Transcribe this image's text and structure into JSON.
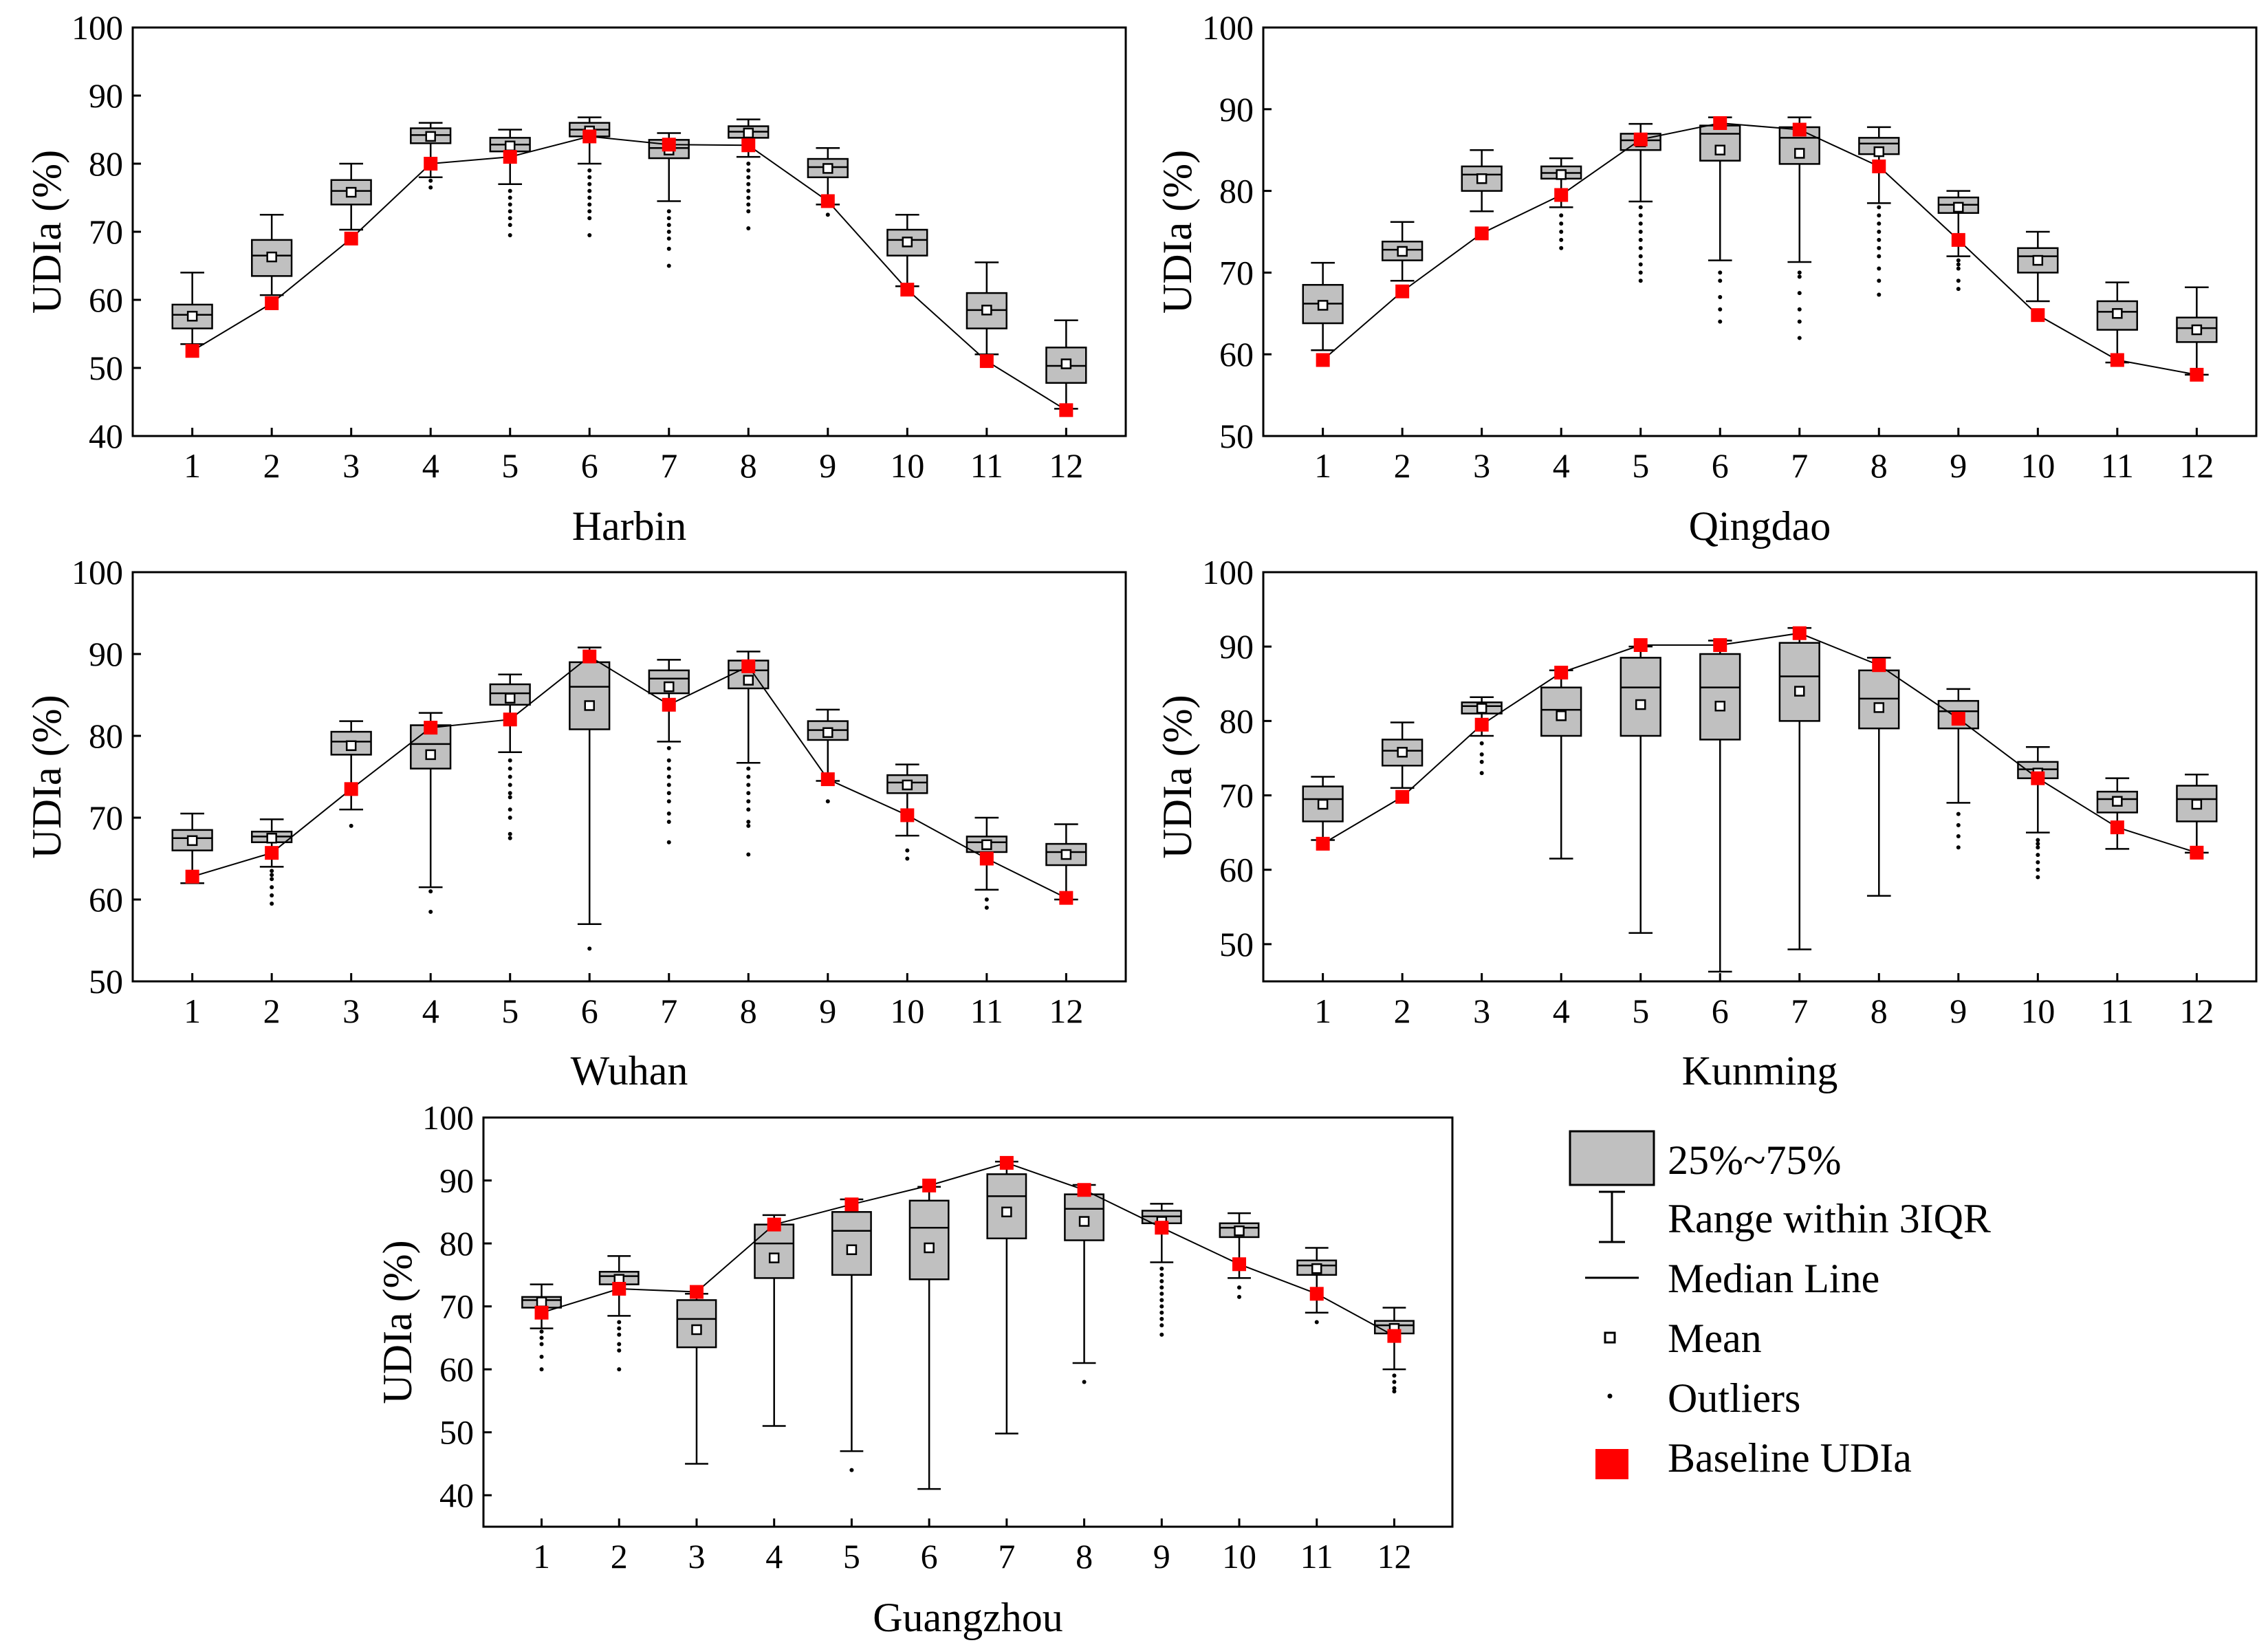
{
  "chart_data": [
    {
      "type": "box",
      "title": "Harbin",
      "xlabel": "Harbin",
      "ylabel": "UDIa (%)",
      "categories": [
        "1",
        "2",
        "3",
        "4",
        "5",
        "6",
        "7",
        "8",
        "9",
        "10",
        "11",
        "12"
      ],
      "ylim": [
        40,
        100
      ],
      "yticks": [
        "40",
        "50",
        "60",
        "70",
        "80",
        "90",
        "100"
      ],
      "boxes": [
        {
          "whisker_low": 53.5,
          "q1": 55.8,
          "median": 57.8,
          "q3": 59.3,
          "whisker_high": 64.0,
          "mean": 57.6,
          "outliers": []
        },
        {
          "whisker_low": 60.7,
          "q1": 63.5,
          "median": 66.5,
          "q3": 68.8,
          "whisker_high": 72.5,
          "mean": 66.3,
          "outliers": []
        },
        {
          "whisker_low": 70.3,
          "q1": 74.0,
          "median": 76.0,
          "q3": 77.6,
          "whisker_high": 80.0,
          "mean": 75.8,
          "outliers": []
        },
        {
          "whisker_low": 78.0,
          "q1": 83.0,
          "median": 84.2,
          "q3": 85.2,
          "whisker_high": 86.0,
          "mean": 84.0,
          "outliers": [
            77.5,
            76.5
          ]
        },
        {
          "whisker_low": 77.0,
          "q1": 81.8,
          "median": 82.8,
          "q3": 83.8,
          "whisker_high": 85.0,
          "mean": 82.6,
          "outliers": [
            76,
            75,
            74,
            73,
            72,
            71,
            69.5
          ]
        },
        {
          "whisker_low": 80.0,
          "q1": 84.0,
          "median": 85.0,
          "q3": 86.0,
          "whisker_high": 86.8,
          "mean": 84.8,
          "outliers": [
            79,
            78,
            77,
            76,
            75,
            74,
            73,
            72,
            69.5
          ]
        },
        {
          "whisker_low": 74.5,
          "q1": 80.8,
          "median": 82.3,
          "q3": 83.5,
          "whisker_high": 84.5,
          "mean": 82.0,
          "outliers": [
            73,
            72,
            71,
            70,
            69,
            67.5,
            65
          ]
        },
        {
          "whisker_low": 81.0,
          "q1": 83.8,
          "median": 84.7,
          "q3": 85.5,
          "whisker_high": 86.5,
          "mean": 84.5,
          "outliers": [
            80,
            79,
            78,
            77,
            76,
            75,
            74,
            73,
            70.5
          ]
        },
        {
          "whisker_low": 74.0,
          "q1": 78.0,
          "median": 79.5,
          "q3": 80.7,
          "whisker_high": 82.3,
          "mean": 79.3,
          "outliers": [
            72.5
          ]
        },
        {
          "whisker_low": 62.0,
          "q1": 66.5,
          "median": 68.8,
          "q3": 70.3,
          "whisker_high": 72.5,
          "mean": 68.5,
          "outliers": []
        },
        {
          "whisker_low": 52.0,
          "q1": 55.8,
          "median": 58.5,
          "q3": 61.0,
          "whisker_high": 65.5,
          "mean": 58.5,
          "outliers": []
        },
        {
          "whisker_low": 44.0,
          "q1": 47.8,
          "median": 50.3,
          "q3": 53.0,
          "whisker_high": 57.0,
          "mean": 50.6,
          "outliers": []
        }
      ],
      "baseline": [
        52.5,
        59.5,
        69.0,
        80.0,
        81.0,
        84.0,
        82.8,
        82.7,
        74.5,
        61.5,
        51.0,
        43.8
      ]
    },
    {
      "type": "box",
      "title": "Qingdao",
      "xlabel": "Qingdao",
      "ylabel": "UDIa (%)",
      "categories": [
        "1",
        "2",
        "3",
        "4",
        "5",
        "6",
        "7",
        "8",
        "9",
        "10",
        "11",
        "12"
      ],
      "ylim": [
        50,
        100
      ],
      "yticks": [
        "50",
        "60",
        "70",
        "80",
        "90",
        "100"
      ],
      "boxes": [
        {
          "whisker_low": 60.5,
          "q1": 63.8,
          "median": 66.2,
          "q3": 68.5,
          "whisker_high": 71.2,
          "mean": 66.0,
          "outliers": []
        },
        {
          "whisker_low": 69.0,
          "q1": 71.5,
          "median": 72.8,
          "q3": 73.8,
          "whisker_high": 76.2,
          "mean": 72.6,
          "outliers": []
        },
        {
          "whisker_low": 77.5,
          "q1": 80.0,
          "median": 82.0,
          "q3": 83.0,
          "whisker_high": 85.0,
          "mean": 81.5,
          "outliers": []
        },
        {
          "whisker_low": 78.0,
          "q1": 81.5,
          "median": 82.2,
          "q3": 83.0,
          "whisker_high": 84.0,
          "mean": 82.0,
          "outliers": [
            77,
            76,
            75,
            74,
            73
          ]
        },
        {
          "whisker_low": 78.7,
          "q1": 85.0,
          "median": 86.2,
          "q3": 87.0,
          "whisker_high": 88.2,
          "mean": 86.0,
          "outliers": [
            78,
            77,
            76,
            75,
            74,
            73,
            72,
            71,
            70,
            69
          ]
        },
        {
          "whisker_low": 71.5,
          "q1": 83.7,
          "median": 87.0,
          "q3": 88.0,
          "whisker_high": 89.0,
          "mean": 85.0,
          "outliers": [
            70,
            69,
            67,
            65.5,
            64
          ]
        },
        {
          "whisker_low": 71.3,
          "q1": 83.3,
          "median": 86.5,
          "q3": 87.8,
          "whisker_high": 89.0,
          "mean": 84.6,
          "outliers": [
            70,
            69.5,
            67.5,
            65.5,
            64,
            62
          ]
        },
        {
          "whisker_low": 78.5,
          "q1": 84.5,
          "median": 85.8,
          "q3": 86.5,
          "whisker_high": 87.8,
          "mean": 84.8,
          "outliers": [
            78,
            77,
            76,
            75,
            74,
            73,
            72,
            70.5,
            69,
            67.3
          ]
        },
        {
          "whisker_low": 72.0,
          "q1": 77.3,
          "median": 78.3,
          "q3": 79.2,
          "whisker_high": 80.0,
          "mean": 78.0,
          "outliers": [
            71.5,
            71,
            70.5,
            69,
            68
          ]
        },
        {
          "whisker_low": 66.5,
          "q1": 70.0,
          "median": 72.0,
          "q3": 73.0,
          "whisker_high": 75.0,
          "mean": 71.5,
          "outliers": []
        },
        {
          "whisker_low": 59.0,
          "q1": 63.0,
          "median": 65.2,
          "q3": 66.5,
          "whisker_high": 68.8,
          "mean": 65.0,
          "outliers": []
        },
        {
          "whisker_low": 57.5,
          "q1": 61.5,
          "median": 63.2,
          "q3": 64.5,
          "whisker_high": 68.2,
          "mean": 63.0,
          "outliers": []
        }
      ],
      "baseline": [
        59.3,
        67.7,
        74.8,
        79.5,
        86.3,
        88.3,
        87.5,
        83.0,
        74.0,
        64.8,
        59.3,
        57.5
      ]
    },
    {
      "type": "box",
      "title": "Wuhan",
      "xlabel": "Wuhan",
      "ylabel": "UDIa (%)",
      "categories": [
        "1",
        "2",
        "3",
        "4",
        "5",
        "6",
        "7",
        "8",
        "9",
        "10",
        "11",
        "12"
      ],
      "ylim": [
        50,
        100
      ],
      "yticks": [
        "50",
        "60",
        "70",
        "80",
        "90",
        "100"
      ],
      "boxes": [
        {
          "whisker_low": 62.0,
          "q1": 66.0,
          "median": 67.5,
          "q3": 68.5,
          "whisker_high": 70.5,
          "mean": 67.2,
          "outliers": []
        },
        {
          "whisker_low": 64.0,
          "q1": 67.0,
          "median": 67.7,
          "q3": 68.3,
          "whisker_high": 69.8,
          "mean": 67.5,
          "outliers": [
            63.5,
            63,
            62.5,
            61.5,
            60.5,
            59.5
          ]
        },
        {
          "whisker_low": 71.0,
          "q1": 77.7,
          "median": 79.3,
          "q3": 80.5,
          "whisker_high": 81.8,
          "mean": 78.8,
          "outliers": [
            69
          ]
        },
        {
          "whisker_low": 61.5,
          "q1": 76.0,
          "median": 79.0,
          "q3": 81.3,
          "whisker_high": 82.8,
          "mean": 77.7,
          "outliers": [
            61,
            58.5
          ]
        },
        {
          "whisker_low": 78.0,
          "q1": 83.8,
          "median": 85.2,
          "q3": 86.3,
          "whisker_high": 87.5,
          "mean": 84.6,
          "outliers": [
            77,
            76,
            75,
            74,
            73,
            72.5,
            71,
            70,
            68,
            67.5
          ]
        },
        {
          "whisker_low": 57.0,
          "q1": 80.8,
          "median": 86.0,
          "q3": 89.0,
          "whisker_high": 90.8,
          "mean": 83.7,
          "outliers": [
            54
          ]
        },
        {
          "whisker_low": 79.3,
          "q1": 85.2,
          "median": 87.0,
          "q3": 88.0,
          "whisker_high": 89.3,
          "mean": 86.0,
          "outliers": [
            78.5,
            77,
            76,
            75,
            74,
            73,
            72,
            70.5,
            69.5,
            67
          ]
        },
        {
          "whisker_low": 76.7,
          "q1": 85.8,
          "median": 88.0,
          "q3": 89.2,
          "whisker_high": 90.3,
          "mean": 86.8,
          "outliers": [
            76,
            75,
            74,
            73,
            72,
            71,
            69.5,
            69,
            65.5
          ]
        },
        {
          "whisker_low": 74.5,
          "q1": 79.5,
          "median": 80.7,
          "q3": 81.8,
          "whisker_high": 83.2,
          "mean": 80.4,
          "outliers": [
            72
          ]
        },
        {
          "whisker_low": 67.8,
          "q1": 73.0,
          "median": 74.3,
          "q3": 75.2,
          "whisker_high": 76.5,
          "mean": 74.0,
          "outliers": [
            66,
            65
          ]
        },
        {
          "whisker_low": 61.2,
          "q1": 65.8,
          "median": 67.0,
          "q3": 67.7,
          "whisker_high": 70.0,
          "mean": 66.7,
          "outliers": [
            60,
            59
          ]
        },
        {
          "whisker_low": 60.0,
          "q1": 64.2,
          "median": 65.8,
          "q3": 66.8,
          "whisker_high": 69.2,
          "mean": 65.5,
          "outliers": []
        }
      ],
      "baseline": [
        62.8,
        65.7,
        73.5,
        81.0,
        82.0,
        89.7,
        83.8,
        88.5,
        74.7,
        70.3,
        65.0,
        60.2
      ]
    },
    {
      "type": "box",
      "title": "Kunming",
      "xlabel": "Kunming",
      "ylabel": "UDIa (%)",
      "categories": [
        "1",
        "2",
        "3",
        "4",
        "5",
        "6",
        "7",
        "8",
        "9",
        "10",
        "11",
        "12"
      ],
      "ylim": [
        45,
        100
      ],
      "yticks": [
        "50",
        "60",
        "70",
        "80",
        "90",
        "100"
      ],
      "boxes": [
        {
          "whisker_low": 64.0,
          "q1": 66.5,
          "median": 69.5,
          "q3": 71.2,
          "whisker_high": 72.5,
          "mean": 68.8,
          "outliers": []
        },
        {
          "whisker_low": 71.0,
          "q1": 74.0,
          "median": 76.0,
          "q3": 77.5,
          "whisker_high": 79.8,
          "mean": 75.8,
          "outliers": []
        },
        {
          "whisker_low": 78.0,
          "q1": 81.0,
          "median": 82.0,
          "q3": 82.5,
          "whisker_high": 83.2,
          "mean": 81.7,
          "outliers": [
            77,
            75.5,
            74.5,
            73
          ]
        },
        {
          "whisker_low": 61.5,
          "q1": 78.0,
          "median": 81.5,
          "q3": 84.5,
          "whisker_high": 86.8,
          "mean": 80.7,
          "outliers": []
        },
        {
          "whisker_low": 51.5,
          "q1": 78.0,
          "median": 84.5,
          "q3": 88.5,
          "whisker_high": 90.0,
          "mean": 82.2,
          "outliers": []
        },
        {
          "whisker_low": 46.3,
          "q1": 77.5,
          "median": 84.5,
          "q3": 89.0,
          "whisker_high": 90.8,
          "mean": 82.0,
          "outliers": []
        },
        {
          "whisker_low": 49.3,
          "q1": 80.0,
          "median": 86.0,
          "q3": 90.5,
          "whisker_high": 92.5,
          "mean": 84.0,
          "outliers": []
        },
        {
          "whisker_low": 56.5,
          "q1": 79.0,
          "median": 83.0,
          "q3": 86.8,
          "whisker_high": 88.5,
          "mean": 81.8,
          "outliers": []
        },
        {
          "whisker_low": 69.0,
          "q1": 79.0,
          "median": 81.3,
          "q3": 82.7,
          "whisker_high": 84.3,
          "mean": 80.5,
          "outliers": [
            67.5,
            66,
            64.5,
            63
          ]
        },
        {
          "whisker_low": 65.0,
          "q1": 72.3,
          "median": 73.5,
          "q3": 74.5,
          "whisker_high": 76.5,
          "mean": 73.0,
          "outliers": [
            64,
            63.5,
            63,
            62,
            61,
            60,
            59
          ]
        },
        {
          "whisker_low": 62.8,
          "q1": 67.7,
          "median": 69.5,
          "q3": 70.5,
          "whisker_high": 72.3,
          "mean": 69.2,
          "outliers": []
        },
        {
          "whisker_low": 62.3,
          "q1": 66.5,
          "median": 69.5,
          "q3": 71.3,
          "whisker_high": 72.8,
          "mean": 68.8,
          "outliers": []
        }
      ],
      "baseline": [
        63.5,
        69.8,
        79.5,
        86.5,
        90.2,
        90.2,
        91.8,
        87.5,
        80.3,
        72.3,
        65.7,
        62.3
      ]
    },
    {
      "type": "box",
      "title": "Guangzhou",
      "xlabel": "Guangzhou",
      "ylabel": "UDIa (%)",
      "categories": [
        "1",
        "2",
        "3",
        "4",
        "5",
        "6",
        "7",
        "8",
        "9",
        "10",
        "11",
        "12"
      ],
      "ylim": [
        35,
        100
      ],
      "yticks": [
        "40",
        "50",
        "60",
        "70",
        "80",
        "90",
        "100"
      ],
      "boxes": [
        {
          "whisker_low": 66.5,
          "q1": 69.8,
          "median": 71.0,
          "q3": 71.5,
          "whisker_high": 73.5,
          "mean": 70.7,
          "outliers": [
            66,
            65,
            64,
            62,
            60
          ]
        },
        {
          "whisker_low": 68.5,
          "q1": 73.5,
          "median": 74.8,
          "q3": 75.5,
          "whisker_high": 78.0,
          "mean": 74.3,
          "outliers": [
            67.5,
            66.5,
            65.5,
            64,
            63,
            60
          ]
        },
        {
          "whisker_low": 45.0,
          "q1": 63.5,
          "median": 68.0,
          "q3": 71.0,
          "whisker_high": 72.0,
          "mean": 66.3,
          "outliers": []
        },
        {
          "whisker_low": 51.0,
          "q1": 74.5,
          "median": 80.0,
          "q3": 83.0,
          "whisker_high": 84.5,
          "mean": 77.7,
          "outliers": []
        },
        {
          "whisker_low": 47.0,
          "q1": 75.0,
          "median": 82.0,
          "q3": 85.0,
          "whisker_high": 87.0,
          "mean": 79.0,
          "outliers": [
            44
          ]
        },
        {
          "whisker_low": 41.0,
          "q1": 74.3,
          "median": 82.5,
          "q3": 86.8,
          "whisker_high": 89.0,
          "mean": 79.3,
          "outliers": []
        },
        {
          "whisker_low": 49.8,
          "q1": 80.8,
          "median": 87.5,
          "q3": 91.0,
          "whisker_high": 93.0,
          "mean": 85.0,
          "outliers": []
        },
        {
          "whisker_low": 61.0,
          "q1": 80.5,
          "median": 85.5,
          "q3": 87.8,
          "whisker_high": 89.3,
          "mean": 83.5,
          "outliers": [
            58
          ]
        },
        {
          "whisker_low": 77.0,
          "q1": 83.2,
          "median": 84.3,
          "q3": 85.2,
          "whisker_high": 86.3,
          "mean": 83.5,
          "outliers": [
            76,
            75,
            74,
            73,
            72,
            71,
            70,
            69,
            68,
            67,
            65.5
          ]
        },
        {
          "whisker_low": 74.5,
          "q1": 81.0,
          "median": 82.5,
          "q3": 83.2,
          "whisker_high": 84.8,
          "mean": 82.0,
          "outliers": [
            73,
            71.5
          ]
        },
        {
          "whisker_low": 69.0,
          "q1": 75.0,
          "median": 76.5,
          "q3": 77.3,
          "whisker_high": 79.3,
          "mean": 76.0,
          "outliers": [
            67.5
          ]
        },
        {
          "whisker_low": 60.0,
          "q1": 65.7,
          "median": 67.0,
          "q3": 67.7,
          "whisker_high": 69.8,
          "mean": 66.5,
          "outliers": [
            59,
            58,
            57,
            56.5
          ]
        }
      ],
      "baseline": [
        69.0,
        72.8,
        72.3,
        83.0,
        86.2,
        89.2,
        92.8,
        88.5,
        82.5,
        76.7,
        72.0,
        65.3
      ]
    }
  ],
  "legend": [
    {
      "key": "box",
      "label": "25%~75%"
    },
    {
      "key": "whisker",
      "label": "Range within 3IQR"
    },
    {
      "key": "median",
      "label": "Median Line"
    },
    {
      "key": "mean",
      "label": "Mean"
    },
    {
      "key": "outlier",
      "label": "Outliers"
    },
    {
      "key": "baseline",
      "label": "Baseline UDIa"
    }
  ],
  "colors": {
    "box_fill": "#c0c0c0",
    "baseline": "#ff0000",
    "line": "#000000"
  }
}
